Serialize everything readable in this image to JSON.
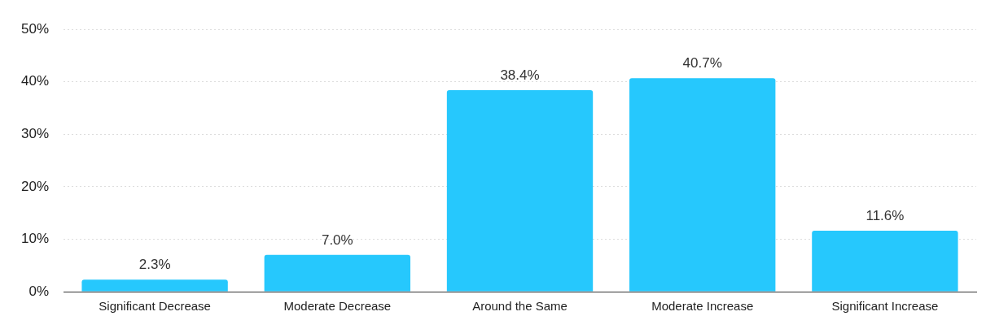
{
  "chart_data": {
    "type": "bar",
    "categories": [
      "Significant Decrease",
      "Moderate Decrease",
      "Around the Same",
      "Moderate Increase",
      "Significant Increase"
    ],
    "values": [
      2.3,
      7.0,
      38.4,
      40.7,
      11.6
    ],
    "value_labels": [
      "2.3%",
      "7.0%",
      "38.4%",
      "40.7%",
      "11.6%"
    ],
    "color": "#26c8fd",
    "ylim": [
      0,
      50
    ],
    "yticks": [
      {
        "value": 0,
        "label": "0%"
      },
      {
        "value": 10,
        "label": "10%"
      },
      {
        "value": 20,
        "label": "20%"
      },
      {
        "value": 30,
        "label": "30%"
      },
      {
        "value": 40,
        "label": "40%"
      },
      {
        "value": 50,
        "label": "50%"
      }
    ],
    "grid": "y",
    "legend": false
  }
}
